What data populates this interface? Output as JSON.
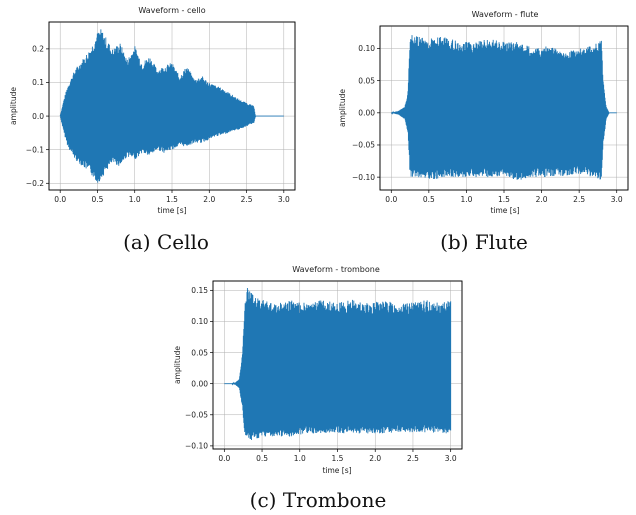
{
  "figure": {
    "accent_color": "#1f77b4"
  },
  "chart_data": [
    {
      "type": "line",
      "title": "Waveform - cello",
      "caption": "(a) Cello",
      "xlabel": "time [s]",
      "ylabel": "amplitude",
      "xlim": [
        -0.15,
        3.15
      ],
      "ylim": [
        -0.22,
        0.28
      ],
      "xticks": [
        0.0,
        0.5,
        1.0,
        1.5,
        2.0,
        2.5,
        3.0
      ],
      "xtick_labels": [
        "0.0",
        "0.5",
        "1.0",
        "1.5",
        "2.0",
        "2.5",
        "3.0"
      ],
      "yticks": [
        -0.2,
        -0.1,
        0.0,
        0.1,
        0.2
      ],
      "ytick_labels": [
        "−0.2",
        "−0.1",
        "0.0",
        "0.1",
        "0.2"
      ],
      "grid": true,
      "series": [
        {
          "color": "#1f77b4",
          "envelope_time": [
            0.0,
            0.05,
            0.1,
            0.2,
            0.3,
            0.4,
            0.5,
            0.55,
            0.6,
            0.7,
            0.8,
            0.9,
            1.0,
            1.1,
            1.2,
            1.3,
            1.4,
            1.5,
            1.6,
            1.7,
            1.8,
            1.9,
            2.0,
            2.1,
            2.2,
            2.3,
            2.4,
            2.5,
            2.6,
            2.62,
            2.65,
            3.0
          ],
          "envelope_upper": [
            0.0,
            0.05,
            0.09,
            0.14,
            0.17,
            0.2,
            0.25,
            0.26,
            0.24,
            0.2,
            0.22,
            0.17,
            0.21,
            0.16,
            0.18,
            0.14,
            0.15,
            0.16,
            0.12,
            0.15,
            0.11,
            0.12,
            0.1,
            0.09,
            0.08,
            0.065,
            0.05,
            0.04,
            0.03,
            0.0,
            0.0,
            0.0
          ],
          "envelope_lower": [
            0.0,
            -0.05,
            -0.09,
            -0.13,
            -0.15,
            -0.17,
            -0.2,
            -0.19,
            -0.17,
            -0.14,
            -0.15,
            -0.12,
            -0.13,
            -0.11,
            -0.12,
            -0.1,
            -0.11,
            -0.1,
            -0.09,
            -0.09,
            -0.08,
            -0.08,
            -0.07,
            -0.06,
            -0.055,
            -0.045,
            -0.04,
            -0.03,
            -0.02,
            0.0,
            0.0,
            0.0
          ]
        }
      ]
    },
    {
      "type": "line",
      "title": "Waveform - flute",
      "caption": "(b) Flute",
      "xlabel": "time [s]",
      "ylabel": "amplitude",
      "xlim": [
        -0.15,
        3.15
      ],
      "ylim": [
        -0.12,
        0.135
      ],
      "xticks": [
        0.0,
        0.5,
        1.0,
        1.5,
        2.0,
        2.5,
        3.0
      ],
      "xtick_labels": [
        "0.0",
        "0.5",
        "1.0",
        "1.5",
        "2.0",
        "2.5",
        "3.0"
      ],
      "yticks": [
        -0.1,
        -0.05,
        0.0,
        0.05,
        0.1
      ],
      "ytick_labels": [
        "−0.10",
        "−0.05",
        "0.00",
        "0.05",
        "0.10"
      ],
      "grid": true,
      "series": [
        {
          "color": "#1f77b4",
          "envelope_time": [
            0.0,
            0.1,
            0.18,
            0.22,
            0.25,
            0.27,
            0.3,
            0.5,
            0.7,
            0.9,
            1.1,
            1.3,
            1.5,
            1.7,
            1.9,
            2.1,
            2.3,
            2.5,
            2.7,
            2.8,
            2.82,
            2.86,
            2.9,
            3.0
          ],
          "envelope_upper": [
            0.0,
            0.003,
            0.01,
            0.03,
            0.12,
            0.13,
            0.12,
            0.115,
            0.12,
            0.11,
            0.11,
            0.115,
            0.11,
            0.11,
            0.1,
            0.105,
            0.095,
            0.1,
            0.105,
            0.115,
            0.05,
            0.01,
            0.0,
            0.0
          ],
          "envelope_lower": [
            0.0,
            -0.003,
            -0.01,
            -0.03,
            -0.1,
            -0.1,
            -0.1,
            -0.105,
            -0.1,
            -0.1,
            -0.1,
            -0.1,
            -0.1,
            -0.105,
            -0.1,
            -0.1,
            -0.1,
            -0.095,
            -0.1,
            -0.105,
            -0.05,
            -0.01,
            0.0,
            0.0
          ]
        }
      ]
    },
    {
      "type": "line",
      "title": "Waveform - trombone",
      "caption": "(c) Trombone",
      "xlabel": "time [s]",
      "ylabel": "amplitude",
      "xlim": [
        -0.15,
        3.15
      ],
      "ylim": [
        -0.105,
        0.165
      ],
      "xticks": [
        0.0,
        0.5,
        1.0,
        1.5,
        2.0,
        2.5,
        3.0
      ],
      "xtick_labels": [
        "0.0",
        "0.5",
        "1.0",
        "1.5",
        "2.0",
        "2.5",
        "3.0"
      ],
      "yticks": [
        -0.1,
        -0.05,
        0.0,
        0.05,
        0.1,
        0.15
      ],
      "ytick_labels": [
        "−0.10",
        "−0.05",
        "0.00",
        "0.05",
        "0.10",
        "0.15"
      ],
      "grid": true,
      "series": [
        {
          "color": "#1f77b4",
          "envelope_time": [
            0.0,
            0.1,
            0.15,
            0.2,
            0.24,
            0.27,
            0.3,
            0.35,
            0.4,
            0.5,
            0.7,
            0.9,
            1.1,
            1.3,
            1.5,
            1.7,
            1.9,
            2.1,
            2.3,
            2.5,
            2.7,
            2.9,
            3.0
          ],
          "envelope_upper": [
            0.0,
            0.0,
            0.002,
            0.008,
            0.05,
            0.13,
            0.16,
            0.15,
            0.14,
            0.135,
            0.13,
            0.135,
            0.13,
            0.135,
            0.13,
            0.135,
            0.13,
            0.135,
            0.13,
            0.13,
            0.135,
            0.13,
            0.14
          ],
          "envelope_lower": [
            0.0,
            0.0,
            -0.002,
            -0.008,
            -0.04,
            -0.08,
            -0.09,
            -0.095,
            -0.09,
            -0.085,
            -0.085,
            -0.085,
            -0.08,
            -0.08,
            -0.08,
            -0.08,
            -0.08,
            -0.08,
            -0.078,
            -0.08,
            -0.078,
            -0.08,
            -0.08
          ]
        }
      ]
    }
  ]
}
